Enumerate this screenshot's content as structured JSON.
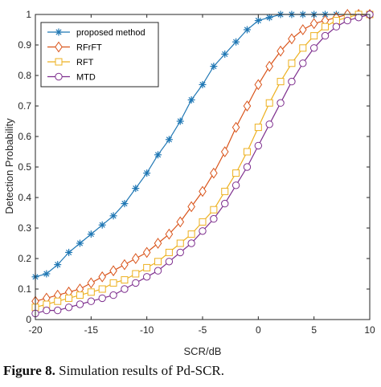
{
  "chart_data": {
    "type": "line",
    "xlabel": "SCR/dB",
    "ylabel": "Detection Probability",
    "xlim": [
      -20,
      10
    ],
    "ylim": [
      0,
      1
    ],
    "xticks": [
      "-20",
      "-15",
      "-10",
      "-5",
      "0",
      "5",
      "10"
    ],
    "yticks": [
      "0",
      "0.1",
      "0.2",
      "0.3",
      "0.4",
      "0.5",
      "0.6",
      "0.7",
      "0.8",
      "0.9",
      "1"
    ],
    "grid": false,
    "legend_position": "top-left",
    "x": [
      -20,
      -19,
      -18,
      -17,
      -16,
      -15,
      -14,
      -13,
      -12,
      -11,
      -10,
      -9,
      -8,
      -7,
      -6,
      -5,
      -4,
      -3,
      -2,
      -1,
      0,
      1,
      2,
      3,
      4,
      5,
      6,
      7,
      8,
      9,
      10
    ],
    "series": [
      {
        "name": "proposed method",
        "color": "#1f77b4",
        "marker": "asterisk",
        "values": [
          0.14,
          0.15,
          0.18,
          0.22,
          0.25,
          0.28,
          0.31,
          0.34,
          0.38,
          0.43,
          0.48,
          0.54,
          0.59,
          0.65,
          0.72,
          0.77,
          0.83,
          0.87,
          0.91,
          0.95,
          0.98,
          0.99,
          1.0,
          1.0,
          1.0,
          1.0,
          1.0,
          1.0,
          1.0,
          1.0,
          1.0
        ]
      },
      {
        "name": "RFrFT",
        "color": "#d95319",
        "marker": "diamond",
        "values": [
          0.06,
          0.07,
          0.08,
          0.09,
          0.1,
          0.12,
          0.14,
          0.16,
          0.18,
          0.2,
          0.22,
          0.25,
          0.28,
          0.32,
          0.37,
          0.42,
          0.48,
          0.55,
          0.63,
          0.7,
          0.77,
          0.83,
          0.88,
          0.92,
          0.95,
          0.97,
          0.98,
          0.99,
          1.0,
          1.0,
          1.0
        ]
      },
      {
        "name": "RFT",
        "color": "#edb120",
        "marker": "square",
        "values": [
          0.04,
          0.05,
          0.06,
          0.07,
          0.08,
          0.09,
          0.1,
          0.12,
          0.13,
          0.15,
          0.17,
          0.19,
          0.22,
          0.25,
          0.28,
          0.32,
          0.36,
          0.42,
          0.48,
          0.55,
          0.63,
          0.71,
          0.78,
          0.84,
          0.89,
          0.93,
          0.96,
          0.98,
          0.99,
          1.0,
          1.0
        ]
      },
      {
        "name": "MTD",
        "color": "#7e2f8e",
        "marker": "circle",
        "values": [
          0.02,
          0.03,
          0.03,
          0.04,
          0.05,
          0.06,
          0.07,
          0.08,
          0.1,
          0.12,
          0.14,
          0.16,
          0.19,
          0.22,
          0.25,
          0.29,
          0.33,
          0.38,
          0.44,
          0.5,
          0.57,
          0.64,
          0.71,
          0.78,
          0.84,
          0.89,
          0.93,
          0.96,
          0.98,
          0.99,
          1.0
        ]
      }
    ]
  },
  "caption": {
    "label": "Figure 8.",
    "text": "Simulation results of Pd-SCR."
  }
}
